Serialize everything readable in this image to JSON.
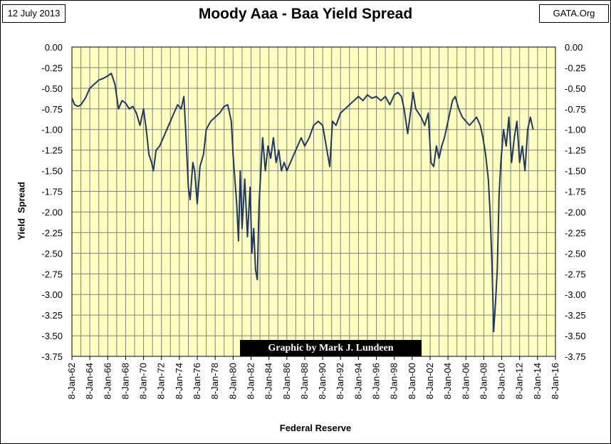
{
  "header": {
    "date": "12 July 2013",
    "title": "Moody Aaa - Baa Yield Spread",
    "source": "GATA.Org"
  },
  "credit": "Graphic by Mark J. Lundeen",
  "colors": {
    "plot_bg": "#FFFFC0",
    "line": "#1F3864",
    "grid": "#808080"
  },
  "chart_data": {
    "type": "line",
    "title": "Moody Aaa - Baa Yield Spread",
    "xlabel": "Federal Reserve",
    "ylabel": "Yield  Spread",
    "ylim": [
      -3.75,
      0.0
    ],
    "xlim": [
      "8-Jan-62",
      "8-Jan-16"
    ],
    "yticks": [
      "0.00",
      "-0.25",
      "-0.50",
      "-0.75",
      "-1.00",
      "-1.25",
      "-1.50",
      "-1.75",
      "-2.00",
      "-2.25",
      "-2.50",
      "-2.75",
      "-3.00",
      "-3.25",
      "-3.50",
      "-3.75"
    ],
    "xticks": [
      "8-Jan-62",
      "8-Jan-64",
      "8-Jan-66",
      "8-Jan-68",
      "8-Jan-70",
      "8-Jan-72",
      "8-Jan-74",
      "8-Jan-76",
      "8-Jan-78",
      "8-Jan-80",
      "8-Jan-82",
      "8-Jan-84",
      "8-Jan-86",
      "8-Jan-88",
      "8-Jan-90",
      "8-Jan-92",
      "8-Jan-94",
      "8-Jan-96",
      "8-Jan-98",
      "8-Jan-00",
      "8-Jan-02",
      "8-Jan-04",
      "8-Jan-06",
      "8-Jan-08",
      "8-Jan-10",
      "8-Jan-12",
      "8-Jan-14",
      "8-Jan-16"
    ],
    "grid": true,
    "series": [
      {
        "x": [
          1962.0,
          1962.3,
          1962.7,
          1963.0,
          1963.5,
          1964.0,
          1964.5,
          1965.0,
          1965.5,
          1966.0,
          1966.4,
          1966.8,
          1967.2,
          1967.6,
          1968.0,
          1968.4,
          1968.8,
          1969.2,
          1969.6,
          1970.0,
          1970.3,
          1970.6,
          1970.9,
          1971.1,
          1971.4,
          1971.8,
          1972.2,
          1972.6,
          1973.0,
          1973.4,
          1973.8,
          1974.2,
          1974.5,
          1974.7,
          1975.0,
          1975.2,
          1975.5,
          1975.7,
          1976.0,
          1976.3,
          1976.7,
          1977.0,
          1977.5,
          1978.0,
          1978.5,
          1979.0,
          1979.4,
          1979.8,
          1980.0,
          1980.2,
          1980.4,
          1980.6,
          1980.8,
          1981.0,
          1981.3,
          1981.6,
          1981.9,
          1982.1,
          1982.3,
          1982.5,
          1982.7,
          1982.9,
          1983.1,
          1983.3,
          1983.6,
          1983.9,
          1984.2,
          1984.5,
          1984.8,
          1985.1,
          1985.4,
          1985.7,
          1986.0,
          1986.4,
          1986.8,
          1987.2,
          1987.6,
          1988.0,
          1988.5,
          1989.0,
          1989.5,
          1990.0,
          1990.4,
          1990.8,
          1991.1,
          1991.5,
          1992.0,
          1992.5,
          1993.0,
          1993.5,
          1994.0,
          1994.5,
          1995.0,
          1995.5,
          1996.0,
          1996.5,
          1997.0,
          1997.5,
          1998.0,
          1998.4,
          1998.8,
          1999.1,
          1999.5,
          1999.8,
          2000.1,
          2000.4,
          2000.7,
          2001.0,
          2001.4,
          2001.8,
          2002.1,
          2002.4,
          2002.7,
          2003.0,
          2003.3,
          2003.6,
          2003.9,
          2004.2,
          2004.5,
          2004.8,
          2005.2,
          2005.6,
          2006.0,
          2006.4,
          2006.8,
          2007.2,
          2007.6,
          2007.9,
          2008.2,
          2008.5,
          2008.7,
          2008.9,
          2009.0,
          2009.1,
          2009.3,
          2009.5,
          2009.7,
          2009.9,
          2010.2,
          2010.5,
          2010.8,
          2011.1,
          2011.4,
          2011.7,
          2012.0,
          2012.3,
          2012.6,
          2012.9,
          2013.2,
          2013.5
        ],
        "y": [
          -0.62,
          -0.7,
          -0.72,
          -0.7,
          -0.62,
          -0.5,
          -0.45,
          -0.4,
          -0.38,
          -0.35,
          -0.32,
          -0.45,
          -0.75,
          -0.65,
          -0.68,
          -0.75,
          -0.72,
          -0.8,
          -0.95,
          -0.75,
          -1.0,
          -1.3,
          -1.4,
          -1.5,
          -1.25,
          -1.2,
          -1.1,
          -1.0,
          -0.9,
          -0.8,
          -0.7,
          -0.75,
          -0.6,
          -1.0,
          -1.7,
          -1.85,
          -1.4,
          -1.5,
          -1.9,
          -1.45,
          -1.3,
          -1.0,
          -0.9,
          -0.85,
          -0.8,
          -0.72,
          -0.7,
          -0.9,
          -1.3,
          -1.6,
          -1.9,
          -2.35,
          -1.5,
          -2.2,
          -1.6,
          -2.3,
          -1.7,
          -2.5,
          -2.2,
          -2.7,
          -2.82,
          -1.9,
          -1.5,
          -1.1,
          -1.5,
          -1.2,
          -1.35,
          -1.1,
          -1.4,
          -1.25,
          -1.5,
          -1.4,
          -1.5,
          -1.4,
          -1.3,
          -1.2,
          -1.1,
          -1.2,
          -1.1,
          -0.95,
          -0.9,
          -0.95,
          -1.2,
          -1.45,
          -0.9,
          -0.95,
          -0.8,
          -0.75,
          -0.7,
          -0.65,
          -0.6,
          -0.65,
          -0.58,
          -0.62,
          -0.6,
          -0.65,
          -0.6,
          -0.7,
          -0.58,
          -0.55,
          -0.6,
          -0.75,
          -1.05,
          -0.8,
          -0.55,
          -0.75,
          -0.8,
          -0.85,
          -0.95,
          -0.8,
          -1.4,
          -1.45,
          -1.2,
          -1.35,
          -1.2,
          -1.1,
          -0.95,
          -0.8,
          -0.65,
          -0.6,
          -0.75,
          -0.85,
          -0.9,
          -0.95,
          -0.9,
          -0.85,
          -0.95,
          -1.1,
          -1.3,
          -1.6,
          -2.0,
          -2.6,
          -3.0,
          -3.45,
          -3.1,
          -2.7,
          -1.8,
          -1.4,
          -1.0,
          -1.2,
          -0.85,
          -1.4,
          -1.1,
          -0.9,
          -1.4,
          -1.2,
          -1.5,
          -1.0,
          -0.85,
          -1.0
        ]
      }
    ]
  }
}
